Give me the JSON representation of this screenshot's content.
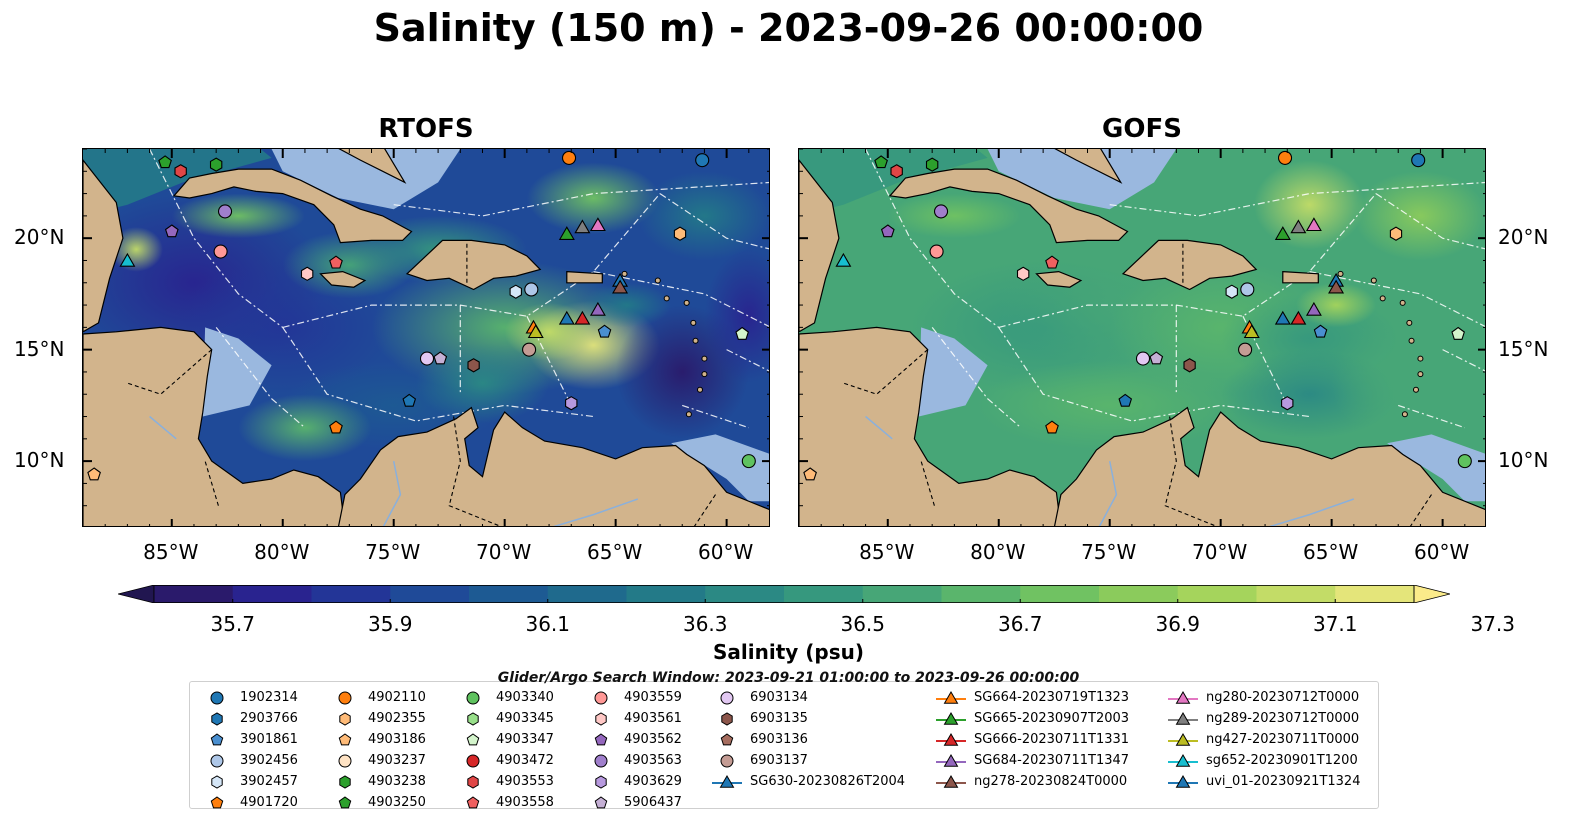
{
  "title": "Salinity (150 m) - 2023-09-26 00:00:00",
  "panels": [
    {
      "title": "RTOFS"
    },
    {
      "title": "GOFS"
    }
  ],
  "x_ticks": [
    "85°W",
    "80°W",
    "75°W",
    "70°W",
    "65°W",
    "60°W"
  ],
  "y_ticks": [
    "20°N",
    "15°N",
    "10°N"
  ],
  "colorbar": {
    "label": "Salinity (psu)",
    "ticks": [
      "35.7",
      "35.9",
      "36.1",
      "36.3",
      "36.5",
      "36.7",
      "36.9",
      "37.1",
      "37.3"
    ],
    "colors": [
      "#2a1a6b",
      "#29238f",
      "#233597",
      "#1f4a98",
      "#1d5a93",
      "#1f6a8d",
      "#237a88",
      "#2b8984",
      "#36987e",
      "#47a677",
      "#5ab56c",
      "#70c262",
      "#8bcb5c",
      "#a5d45c",
      "#c3dc67",
      "#e4e57a"
    ]
  },
  "legend_note": "Glider/Argo Search Window: 2023-09-21 01:00:00 to 2023-09-26 00:00:00",
  "legend": {
    "col1": [
      {
        "label": "1902314",
        "shape": "circle",
        "color": "#1f77b4"
      },
      {
        "label": "2903766",
        "shape": "hexagon",
        "color": "#1f77b4"
      },
      {
        "label": "3901861",
        "shape": "pentagon",
        "color": "#4a8fd0"
      },
      {
        "label": "3902456",
        "shape": "circle",
        "color": "#aec7e8"
      },
      {
        "label": "3902457",
        "shape": "hexagon",
        "color": "#d5e6f7"
      },
      {
        "label": "4901720",
        "shape": "pentagon",
        "color": "#ff7f0e"
      }
    ],
    "col2": [
      {
        "label": "4902110",
        "shape": "circle",
        "color": "#ff7f0e"
      },
      {
        "label": "4902355",
        "shape": "hexagon",
        "color": "#ffbb78"
      },
      {
        "label": "4903186",
        "shape": "pentagon",
        "color": "#ffbb78"
      },
      {
        "label": "4903237",
        "shape": "circle",
        "color": "#ffe3c4"
      },
      {
        "label": "4903238",
        "shape": "hexagon",
        "color": "#2ca02c"
      },
      {
        "label": "4903250",
        "shape": "pentagon",
        "color": "#2ca02c"
      }
    ],
    "col3": [
      {
        "label": "4903340",
        "shape": "circle",
        "color": "#5fc25f"
      },
      {
        "label": "4903345",
        "shape": "hexagon",
        "color": "#98df8a"
      },
      {
        "label": "4903347",
        "shape": "pentagon",
        "color": "#d4f5cc"
      },
      {
        "label": "4903472",
        "shape": "circle",
        "color": "#d62728"
      },
      {
        "label": "4903553",
        "shape": "hexagon",
        "color": "#e04646"
      },
      {
        "label": "4903558",
        "shape": "pentagon",
        "color": "#f06060"
      }
    ],
    "col4": [
      {
        "label": "4903559",
        "shape": "circle",
        "color": "#ff9896"
      },
      {
        "label": "4903561",
        "shape": "hexagon",
        "color": "#ffc8c6"
      },
      {
        "label": "4903562",
        "shape": "pentagon",
        "color": "#9467bd"
      },
      {
        "label": "4903563",
        "shape": "circle",
        "color": "#a07fcc"
      },
      {
        "label": "4903629",
        "shape": "hexagon",
        "color": "#b799de"
      },
      {
        "label": "5906437",
        "shape": "pentagon",
        "color": "#c5b0d5"
      }
    ],
    "col5": [
      {
        "label": "6903134",
        "shape": "circle",
        "color": "#e2c8f2"
      },
      {
        "label": "6903135",
        "shape": "hexagon",
        "color": "#8c564b"
      },
      {
        "label": "6903136",
        "shape": "pentagon",
        "color": "#a66d5f"
      },
      {
        "label": "6903137",
        "shape": "circle",
        "color": "#c49c94"
      },
      {
        "label": "SG630-20230826T2004",
        "shape": "triangle-line",
        "color": "#1f77b4"
      }
    ],
    "col6": [
      {
        "label": "SG664-20230719T1323",
        "shape": "triangle-line",
        "color": "#ff7f0e"
      },
      {
        "label": "SG665-20230907T2003",
        "shape": "triangle-line",
        "color": "#2ca02c"
      },
      {
        "label": "SG666-20230711T1331",
        "shape": "triangle-line",
        "color": "#d62728"
      },
      {
        "label": "SG684-20230711T1347",
        "shape": "triangle-line",
        "color": "#9467bd"
      },
      {
        "label": "ng278-20230824T0000",
        "shape": "triangle-line",
        "color": "#8c564b"
      }
    ],
    "col7": [
      {
        "label": "ng280-20230712T0000",
        "shape": "triangle-line",
        "color": "#e377c2"
      },
      {
        "label": "ng289-20230712T0000",
        "shape": "triangle-line",
        "color": "#7f7f7f"
      },
      {
        "label": "ng427-20230711T0000",
        "shape": "triangle-line",
        "color": "#bcbd22"
      },
      {
        "label": "sg652-20230901T1200",
        "shape": "triangle-line",
        "color": "#17becf"
      },
      {
        "label": "uvi_01-20230921T1324",
        "shape": "triangle-line",
        "color": "#1f77b4"
      }
    ]
  },
  "markers": [
    {
      "lon": -85.3,
      "lat": 23.4,
      "shape": "pentagon",
      "color": "#2ca02c"
    },
    {
      "lon": -84.6,
      "lat": 23.0,
      "shape": "hexagon",
      "color": "#e04646"
    },
    {
      "lon": -83.0,
      "lat": 23.3,
      "shape": "hexagon",
      "color": "#2ca02c"
    },
    {
      "lon": -82.6,
      "lat": 21.2,
      "shape": "circle",
      "color": "#a07fcc"
    },
    {
      "lon": -85.0,
      "lat": 20.3,
      "shape": "pentagon",
      "color": "#9467bd"
    },
    {
      "lon": -82.8,
      "lat": 19.4,
      "shape": "circle",
      "color": "#ff9896"
    },
    {
      "lon": -78.9,
      "lat": 18.4,
      "shape": "hexagon",
      "color": "#ffc8c6"
    },
    {
      "lon": -77.6,
      "lat": 18.9,
      "shape": "pentagon",
      "color": "#f06060"
    },
    {
      "lon": -87.0,
      "lat": 19.0,
      "shape": "triangle",
      "color": "#17becf"
    },
    {
      "lon": -67.1,
      "lat": 23.6,
      "shape": "circle",
      "color": "#ff7f0e"
    },
    {
      "lon": -61.1,
      "lat": 23.5,
      "shape": "circle",
      "color": "#1f77b4"
    },
    {
      "lon": -62.1,
      "lat": 20.2,
      "shape": "hexagon",
      "color": "#ffbb78"
    },
    {
      "lon": -67.2,
      "lat": 20.2,
      "shape": "triangle",
      "color": "#2ca02c"
    },
    {
      "lon": -66.5,
      "lat": 20.5,
      "shape": "triangle",
      "color": "#7f7f7f"
    },
    {
      "lon": -65.8,
      "lat": 20.6,
      "shape": "triangle",
      "color": "#e377c2"
    },
    {
      "lon": -64.8,
      "lat": 18.1,
      "shape": "triangle",
      "color": "#1f77b4"
    },
    {
      "lon": -64.8,
      "lat": 17.8,
      "shape": "triangle",
      "color": "#8c564b"
    },
    {
      "lon": -68.8,
      "lat": 17.7,
      "shape": "circle",
      "color": "#aec7e8"
    },
    {
      "lon": -69.5,
      "lat": 17.6,
      "shape": "hexagon",
      "color": "#d5e6f7"
    },
    {
      "lon": -67.2,
      "lat": 16.4,
      "shape": "triangle",
      "color": "#1f77b4"
    },
    {
      "lon": -66.5,
      "lat": 16.4,
      "shape": "triangle",
      "color": "#d62728"
    },
    {
      "lon": -65.8,
      "lat": 16.8,
      "shape": "triangle",
      "color": "#9467bd"
    },
    {
      "lon": -65.5,
      "lat": 15.8,
      "shape": "pentagon",
      "color": "#4a8fd0"
    },
    {
      "lon": -68.7,
      "lat": 16.0,
      "shape": "triangle",
      "color": "#ff7f0e"
    },
    {
      "lon": -68.6,
      "lat": 15.8,
      "shape": "triangle",
      "color": "#bcbd22"
    },
    {
      "lon": -68.9,
      "lat": 15.0,
      "shape": "circle",
      "color": "#c49c94"
    },
    {
      "lon": -73.5,
      "lat": 14.6,
      "shape": "circle",
      "color": "#e2c8f2"
    },
    {
      "lon": -72.9,
      "lat": 14.6,
      "shape": "pentagon",
      "color": "#c5b0d5"
    },
    {
      "lon": -71.4,
      "lat": 14.3,
      "shape": "hexagon",
      "color": "#8c564b"
    },
    {
      "lon": -74.3,
      "lat": 12.7,
      "shape": "pentagon",
      "color": "#1f77b4"
    },
    {
      "lon": -67.0,
      "lat": 12.6,
      "shape": "hexagon",
      "color": "#b799de"
    },
    {
      "lon": -77.6,
      "lat": 11.5,
      "shape": "pentagon",
      "color": "#ff7f0e"
    },
    {
      "lon": -59.3,
      "lat": 15.7,
      "shape": "pentagon",
      "color": "#d4f5cc"
    },
    {
      "lon": -59.0,
      "lat": 10.0,
      "shape": "circle",
      "color": "#5fc25f"
    },
    {
      "lon": -88.5,
      "lat": 9.4,
      "shape": "pentagon",
      "color": "#ffbb78"
    }
  ]
}
